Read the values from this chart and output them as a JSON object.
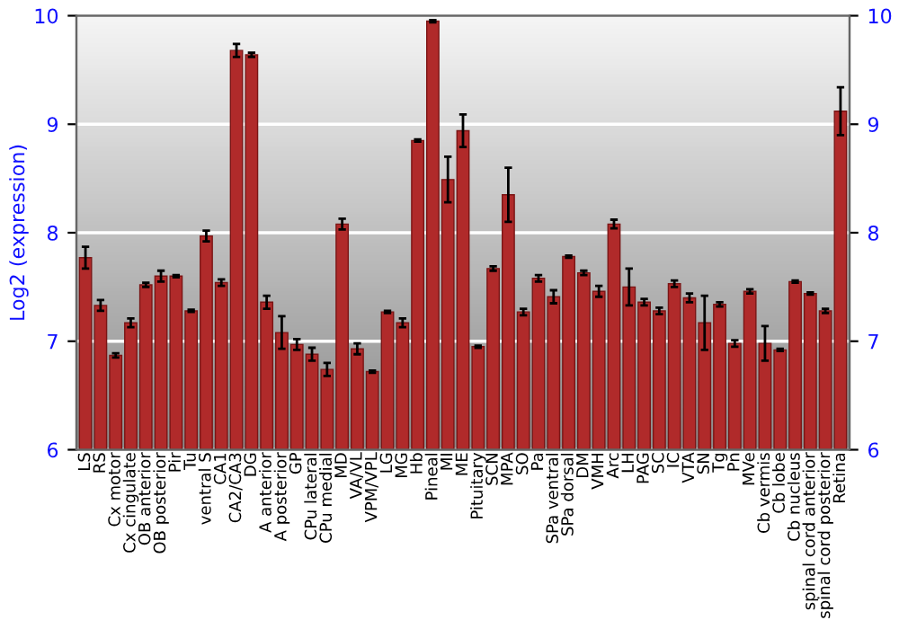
{
  "chart_data": {
    "type": "bar",
    "ylabel": "Log2 (expression)",
    "categories": [
      "LS",
      "RS",
      "Cx motor",
      "Cx cingulate",
      "OB anterior",
      "OB posterior",
      "Pir",
      "Tu",
      "ventral S",
      "CA1",
      "CA2/CA3",
      "DG",
      "A anterior",
      "A posterior",
      "GP",
      "CPu lateral",
      "CPu medial",
      "MD",
      "VA/VL",
      "VPM/VPL",
      "LG",
      "MG",
      "Hb",
      "Pineal",
      "MI",
      "ME",
      "Pituitary",
      "SCN",
      "MPA",
      "SO",
      "Pa",
      "SPa ventral",
      "SPa dorsal",
      "DM",
      "VMH",
      "Arc",
      "LH",
      "PAG",
      "SC",
      "IC",
      "VTA",
      "SN",
      "Tg",
      "Pn",
      "MVe",
      "Cb vermis",
      "Cb lobe",
      "Cb nucleus",
      "spinal cord anterior",
      "spinal cord posterior",
      "Retina"
    ],
    "values": [
      7.77,
      7.33,
      6.87,
      7.17,
      7.52,
      7.6,
      7.6,
      7.28,
      7.97,
      7.54,
      9.68,
      9.64,
      7.36,
      7.08,
      6.97,
      6.88,
      6.74,
      8.08,
      6.93,
      6.72,
      7.27,
      7.17,
      8.85,
      9.95,
      8.49,
      8.94,
      6.95,
      7.67,
      8.35,
      7.27,
      7.58,
      7.41,
      7.78,
      7.63,
      7.46,
      8.08,
      7.5,
      7.36,
      7.28,
      7.53,
      7.4,
      7.17,
      7.34,
      6.98,
      7.46,
      6.98,
      6.92,
      7.55,
      7.44,
      7.28,
      9.12
    ],
    "errors": [
      0.1,
      0.05,
      0.02,
      0.04,
      0.02,
      0.05,
      0.01,
      0.01,
      0.05,
      0.03,
      0.06,
      0.02,
      0.06,
      0.15,
      0.05,
      0.06,
      0.06,
      0.05,
      0.05,
      0.01,
      0.01,
      0.04,
      0.01,
      0.01,
      0.21,
      0.15,
      0.01,
      0.02,
      0.25,
      0.03,
      0.03,
      0.06,
      0.01,
      0.02,
      0.05,
      0.04,
      0.17,
      0.03,
      0.03,
      0.03,
      0.04,
      0.25,
      0.02,
      0.03,
      0.02,
      0.16,
      0.01,
      0.01,
      0.01,
      0.02,
      0.22
    ],
    "color": "#b02a2a",
    "ylim": [
      6,
      10
    ],
    "yticks": [
      6,
      7,
      8,
      9,
      10
    ],
    "y2lim": [
      6,
      10
    ],
    "y2ticks": [
      6,
      7,
      8,
      9,
      10
    ],
    "grid": "y"
  }
}
